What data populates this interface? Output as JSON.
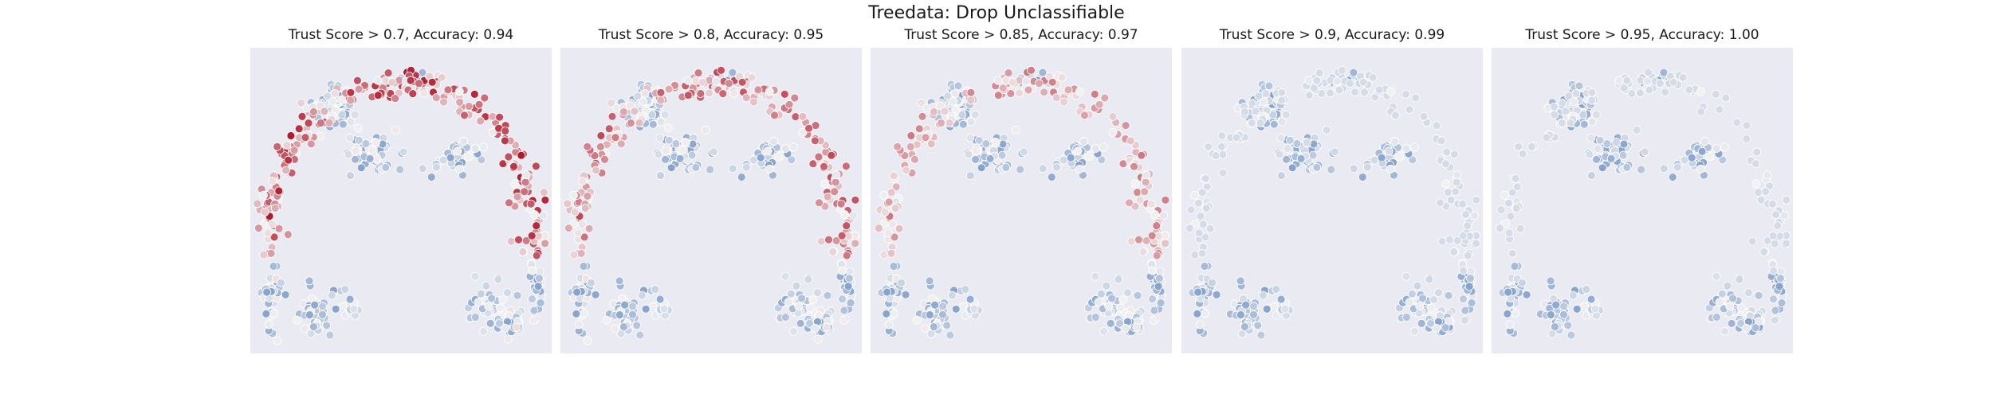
{
  "title": "Treedata: Drop Unclassifiable",
  "chart_data": [
    {
      "type": "scatter",
      "title": "Trust Score > 0.7, Accuracy: 0.94",
      "threshold": 0.7,
      "accuracy": 0.94,
      "grid": false,
      "colormap": "blue-white-red"
    },
    {
      "type": "scatter",
      "title": "Trust Score > 0.8, Accuracy: 0.95",
      "threshold": 0.8,
      "accuracy": 0.95,
      "grid": false,
      "colormap": "blue-white-red"
    },
    {
      "type": "scatter",
      "title": "Trust Score > 0.85, Accuracy: 0.97",
      "threshold": 0.85,
      "accuracy": 0.97,
      "grid": false,
      "colormap": "blue-white-red"
    },
    {
      "type": "scatter",
      "title": "Trust Score > 0.9, Accuracy: 0.99",
      "threshold": 0.9,
      "accuracy": 0.99,
      "grid": false,
      "colormap": "blue-white-red"
    },
    {
      "type": "scatter",
      "title": "Trust Score > 0.95, Accuracy: 1.00",
      "threshold": 0.95,
      "accuracy": 1.0,
      "grid": false,
      "colormap": "blue-white-red"
    }
  ],
  "colors": {
    "background": "#eaeaf2",
    "low": "#3a6bb5",
    "mid": "#f2f2f2",
    "high": "#b2182b"
  }
}
